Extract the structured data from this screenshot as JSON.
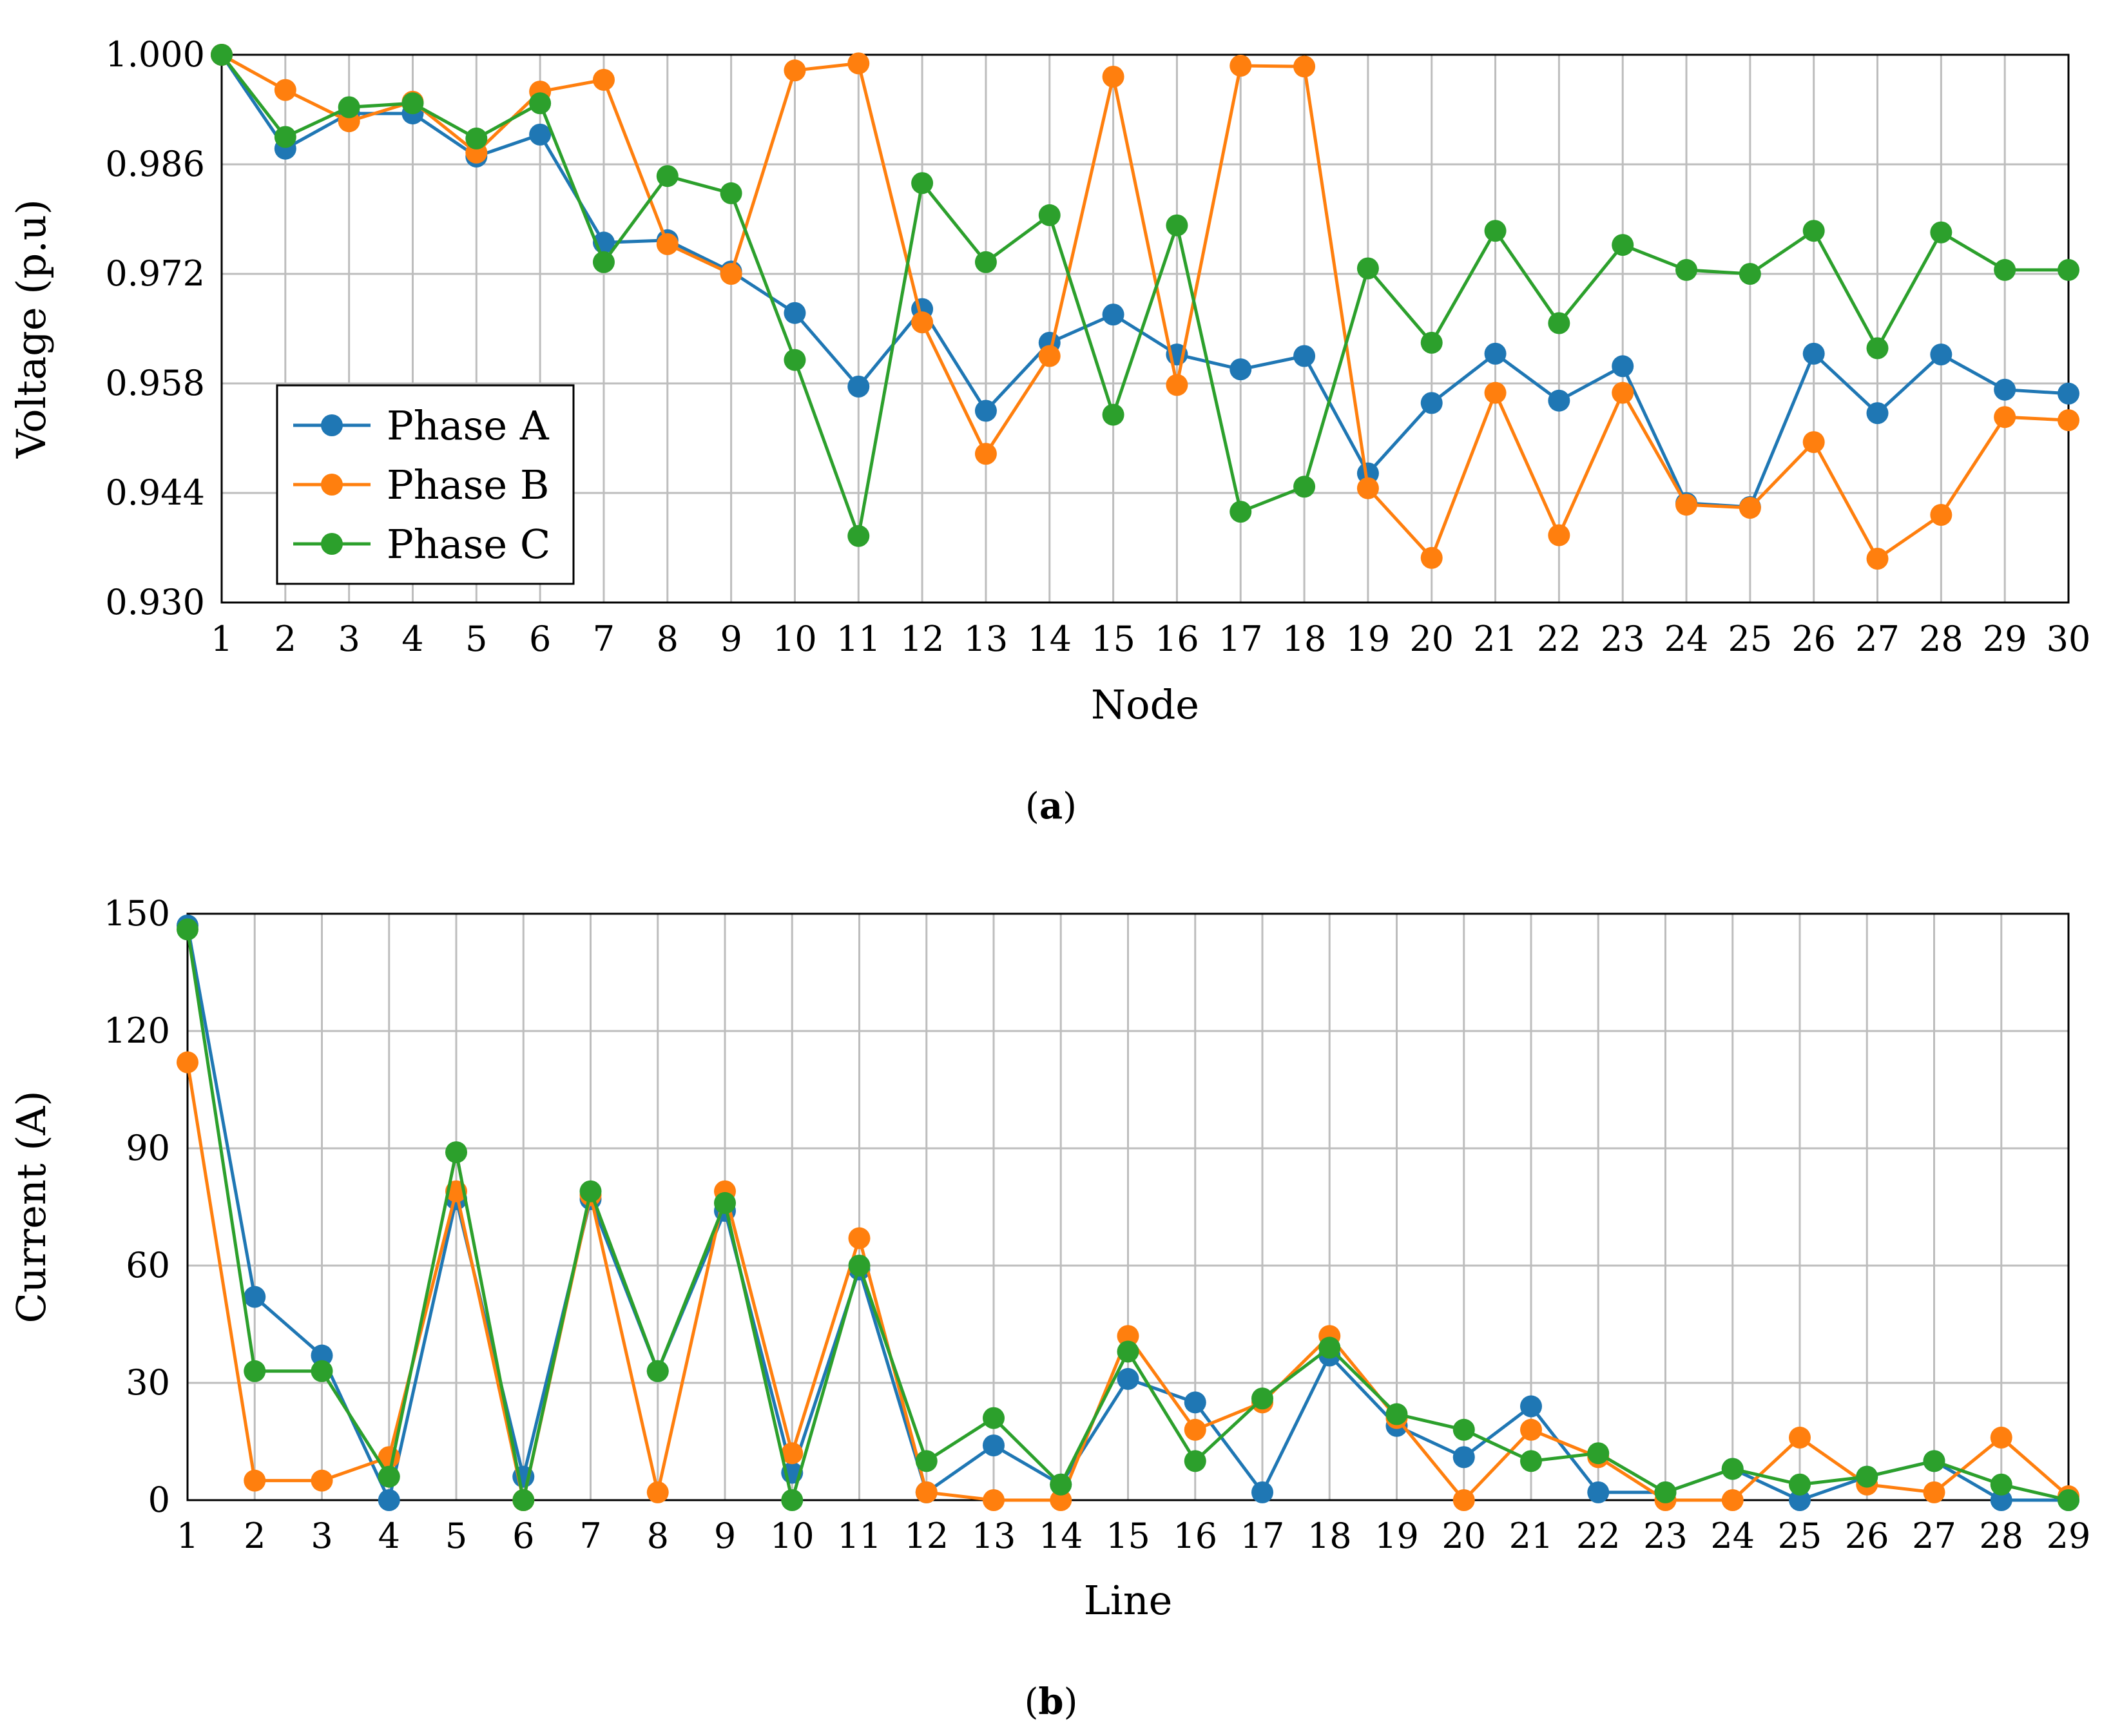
{
  "colors": {
    "phase_a": "#1f77b4",
    "phase_b": "#ff7f0e",
    "phase_c": "#2ca02c",
    "grid": "#bdbdbd"
  },
  "chart_data": [
    {
      "type": "line",
      "title": "",
      "caption": {
        "letter": "a",
        "open": "(",
        "close": ")"
      },
      "xlabel": "Node",
      "ylabel": "Voltage (p.u)",
      "xlim": [
        1,
        30
      ],
      "ylim": [
        0.93,
        1.0
      ],
      "grid": true,
      "legend": "bottom-left",
      "x": [
        1,
        2,
        3,
        4,
        5,
        6,
        7,
        8,
        9,
        10,
        11,
        12,
        13,
        14,
        15,
        16,
        17,
        18,
        19,
        20,
        21,
        22,
        23,
        24,
        25,
        26,
        27,
        28,
        29,
        30
      ],
      "xticks": [
        "1",
        "2",
        "3",
        "4",
        "5",
        "6",
        "7",
        "8",
        "9",
        "10",
        "11",
        "12",
        "13",
        "14",
        "15",
        "16",
        "17",
        "18",
        "19",
        "20",
        "21",
        "22",
        "23",
        "24",
        "25",
        "26",
        "27",
        "28",
        "29",
        "30"
      ],
      "yticks": [
        "0.930",
        "0.944",
        "0.958",
        "0.972",
        "0.986",
        "1.000"
      ],
      "yticks_values": [
        0.93,
        0.944,
        0.958,
        0.972,
        0.986,
        1.0
      ],
      "series": [
        {
          "name": "Phase A",
          "color_key": "phase_a",
          "values": [
            1.0,
            0.988,
            0.9925,
            0.9925,
            0.987,
            0.9898,
            0.976,
            0.9763,
            0.9723,
            0.967,
            0.9576,
            0.9675,
            0.9545,
            0.9632,
            0.9668,
            0.9617,
            0.9598,
            0.9615,
            0.9465,
            0.9555,
            0.9618,
            0.9558,
            0.9602,
            0.9427,
            0.9422,
            0.9618,
            0.9542,
            0.9617,
            0.9572,
            0.9567
          ]
        },
        {
          "name": "Phase B",
          "color_key": "phase_b",
          "values": [
            1.0,
            0.9955,
            0.9915,
            0.994,
            0.9875,
            0.9953,
            0.9968,
            0.9758,
            0.972,
            0.998,
            0.9989,
            0.9658,
            0.949,
            0.9615,
            0.9972,
            0.9578,
            0.9986,
            0.9985,
            0.9446,
            0.9357,
            0.9568,
            0.9386,
            0.9568,
            0.9425,
            0.9421,
            0.9505,
            0.9356,
            0.9412,
            0.9537,
            0.9533
          ]
        },
        {
          "name": "Phase C",
          "color_key": "phase_c",
          "values": [
            1.0,
            0.9895,
            0.9933,
            0.9938,
            0.9893,
            0.9938,
            0.9735,
            0.9845,
            0.9823,
            0.961,
            0.9385,
            0.9836,
            0.9735,
            0.9795,
            0.954,
            0.9782,
            0.9416,
            0.9448,
            0.9727,
            0.9632,
            0.9775,
            0.9657,
            0.9757,
            0.9725,
            0.972,
            0.9775,
            0.9625,
            0.9773,
            0.9725,
            0.9725
          ]
        }
      ]
    },
    {
      "type": "line",
      "title": "",
      "caption": {
        "letter": "b",
        "open": "(",
        "close": ")"
      },
      "xlabel": "Line",
      "ylabel": "Current (A)",
      "xlim": [
        1,
        29
      ],
      "ylim": [
        0,
        150
      ],
      "grid": true,
      "legend": "none",
      "x": [
        1,
        2,
        3,
        4,
        5,
        6,
        7,
        8,
        9,
        10,
        11,
        12,
        13,
        14,
        15,
        16,
        17,
        18,
        19,
        20,
        21,
        22,
        23,
        24,
        25,
        26,
        27,
        28,
        29
      ],
      "xticks": [
        "1",
        "2",
        "3",
        "4",
        "5",
        "6",
        "7",
        "8",
        "9",
        "10",
        "11",
        "12",
        "13",
        "14",
        "15",
        "16",
        "17",
        "18",
        "19",
        "20",
        "21",
        "22",
        "23",
        "24",
        "25",
        "26",
        "27",
        "28",
        "29"
      ],
      "yticks": [
        "0",
        "30",
        "60",
        "90",
        "120",
        "150"
      ],
      "yticks_values": [
        0,
        30,
        60,
        90,
        120,
        150
      ],
      "series": [
        {
          "name": "Phase A",
          "color_key": "phase_a",
          "values": [
            147,
            52,
            37,
            0,
            77,
            6,
            77,
            33,
            74,
            7,
            59,
            2,
            14,
            4,
            31,
            25,
            2,
            37,
            19,
            11,
            24,
            2,
            2,
            8,
            0,
            6,
            10,
            0,
            0
          ]
        },
        {
          "name": "Phase B",
          "color_key": "phase_b",
          "values": [
            112,
            5,
            5,
            11,
            79,
            0,
            78,
            2,
            79,
            12,
            67,
            2,
            0,
            0,
            42,
            18,
            25,
            42,
            21,
            0,
            18,
            11,
            0,
            0,
            16,
            4,
            2,
            16,
            1
          ]
        },
        {
          "name": "Phase C",
          "color_key": "phase_c",
          "values": [
            146,
            33,
            33,
            6,
            89,
            0,
            79,
            33,
            76,
            0,
            60,
            10,
            21,
            4,
            38,
            10,
            26,
            39,
            22,
            18,
            10,
            12,
            2,
            8,
            4,
            6,
            10,
            4,
            0
          ]
        }
      ]
    }
  ]
}
